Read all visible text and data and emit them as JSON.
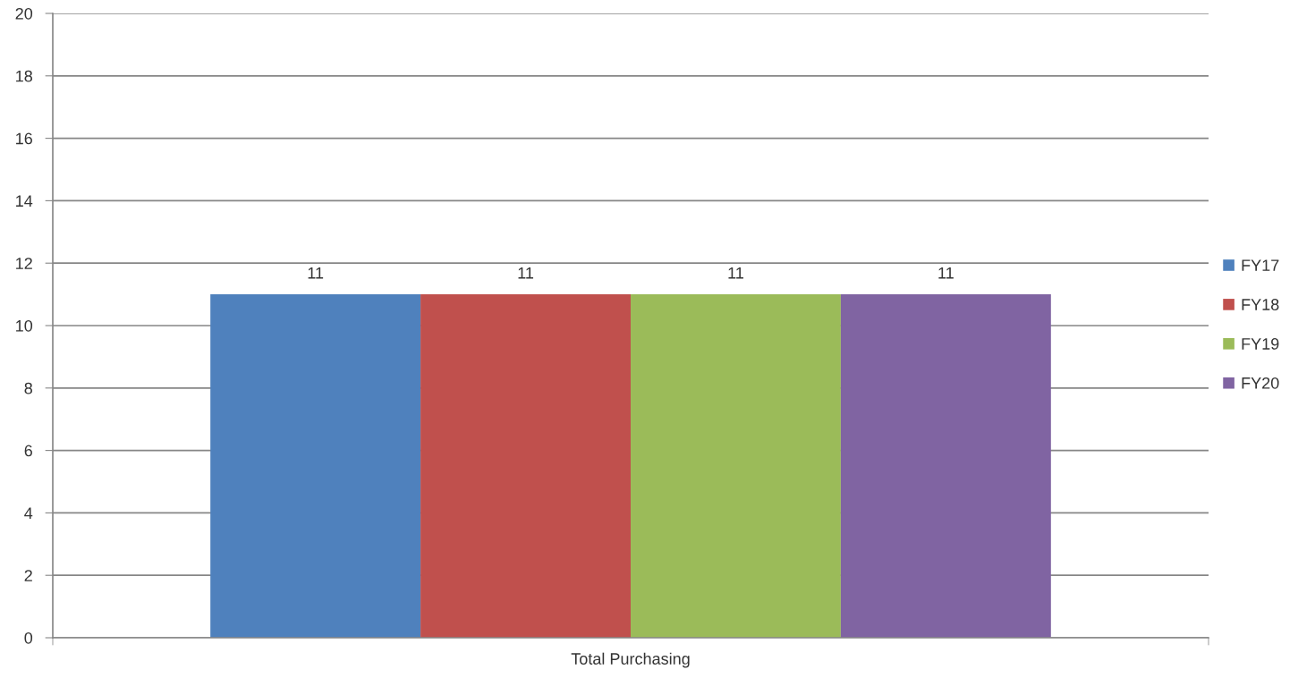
{
  "chart_data": {
    "type": "bar",
    "categories": [
      "Total Purchasing"
    ],
    "series": [
      {
        "name": "FY17",
        "color": "#4f81bd",
        "values": [
          11
        ]
      },
      {
        "name": "FY18",
        "color": "#c0504d",
        "values": [
          11
        ]
      },
      {
        "name": "FY19",
        "color": "#9bbb59",
        "values": [
          11
        ]
      },
      {
        "name": "FY20",
        "color": "#8064a2",
        "values": [
          11
        ]
      }
    ],
    "ylim": [
      0,
      20
    ],
    "yticks": [
      0,
      2,
      4,
      6,
      8,
      10,
      12,
      14,
      16,
      18,
      20
    ],
    "grid": "y",
    "legend": "right",
    "data_labels": true
  }
}
